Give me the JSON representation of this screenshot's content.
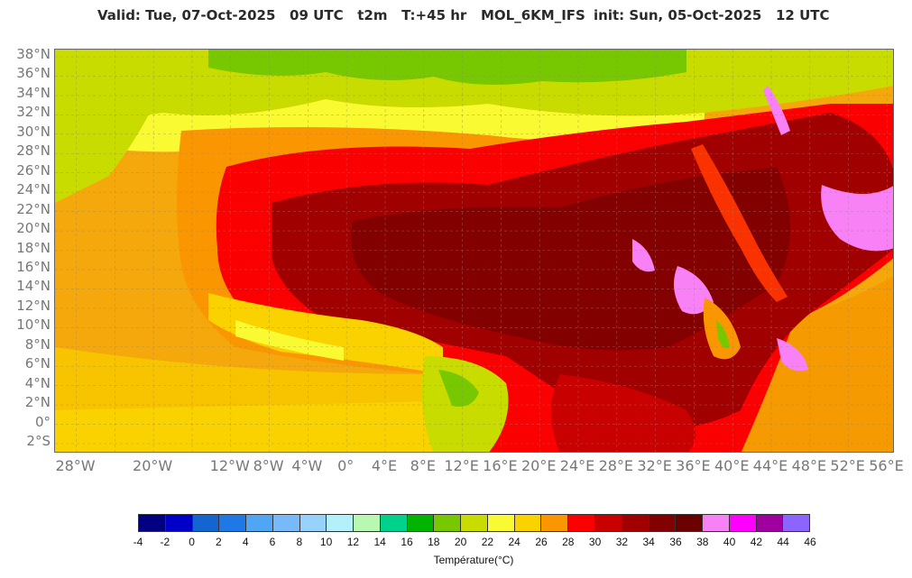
{
  "header": {
    "valid_text": "Valid: Tue, 07-Oct-2025   09 UTC   t2m   T:+45 hr   MOL_6KM_IFS",
    "init_text": "init: Sun, 05-Oct-2025   12 UTC"
  },
  "map": {
    "lat_labels": [
      "38°N",
      "36°N",
      "34°N",
      "32°N",
      "30°N",
      "28°N",
      "26°N",
      "24°N",
      "22°N",
      "20°N",
      "18°N",
      "16°N",
      "14°N",
      "12°N",
      "10°N",
      "8°N",
      "6°N",
      "4°N",
      "2°N",
      "0°",
      "2°S"
    ],
    "lon_labels": [
      {
        "text": "28°W",
        "lon": -28
      },
      {
        "text": "20°W",
        "lon": -20
      },
      {
        "text": "12°W",
        "lon": -12
      },
      {
        "text": "8°W",
        "lon": -8
      },
      {
        "text": "4°W",
        "lon": -4
      },
      {
        "text": "0°",
        "lon": 0
      },
      {
        "text": "4°E",
        "lon": 4
      },
      {
        "text": "8°E",
        "lon": 8
      },
      {
        "text": "12°E",
        "lon": 12
      },
      {
        "text": "16°E",
        "lon": 16
      },
      {
        "text": "20°E",
        "lon": 20
      },
      {
        "text": "24°E",
        "lon": 24
      },
      {
        "text": "28°E",
        "lon": 28
      },
      {
        "text": "32°E",
        "lon": 32
      },
      {
        "text": "36°E",
        "lon": 36
      },
      {
        "text": "40°E",
        "lon": 40
      },
      {
        "text": "44°E",
        "lon": 44
      },
      {
        "text": "48°E",
        "lon": 48
      },
      {
        "text": "52°E",
        "lon": 52
      },
      {
        "text": "56°E",
        "lon": 56
      }
    ]
  },
  "colorbar": {
    "label": "Température(°C)",
    "ticks": [
      "-4",
      "-2",
      "0",
      "2",
      "4",
      "6",
      "8",
      "10",
      "12",
      "14",
      "16",
      "18",
      "20",
      "22",
      "24",
      "26",
      "28",
      "30",
      "32",
      "34",
      "36",
      "38",
      "40",
      "42",
      "44",
      "46"
    ],
    "colors": [
      "#000080",
      "#0000c8",
      "#1464d2",
      "#1e78e6",
      "#50a5f5",
      "#78b9fa",
      "#96d2fa",
      "#b4f0fa",
      "#b9f8b0",
      "#00d28c",
      "#00b400",
      "#78c800",
      "#c8dc00",
      "#fafa32",
      "#fad200",
      "#fa9600",
      "#fa0000",
      "#c80000",
      "#a00000",
      "#820000",
      "#6a0000",
      "#f882f5",
      "#ff00ff",
      "#a000a0",
      "#8c64ff"
    ]
  }
}
